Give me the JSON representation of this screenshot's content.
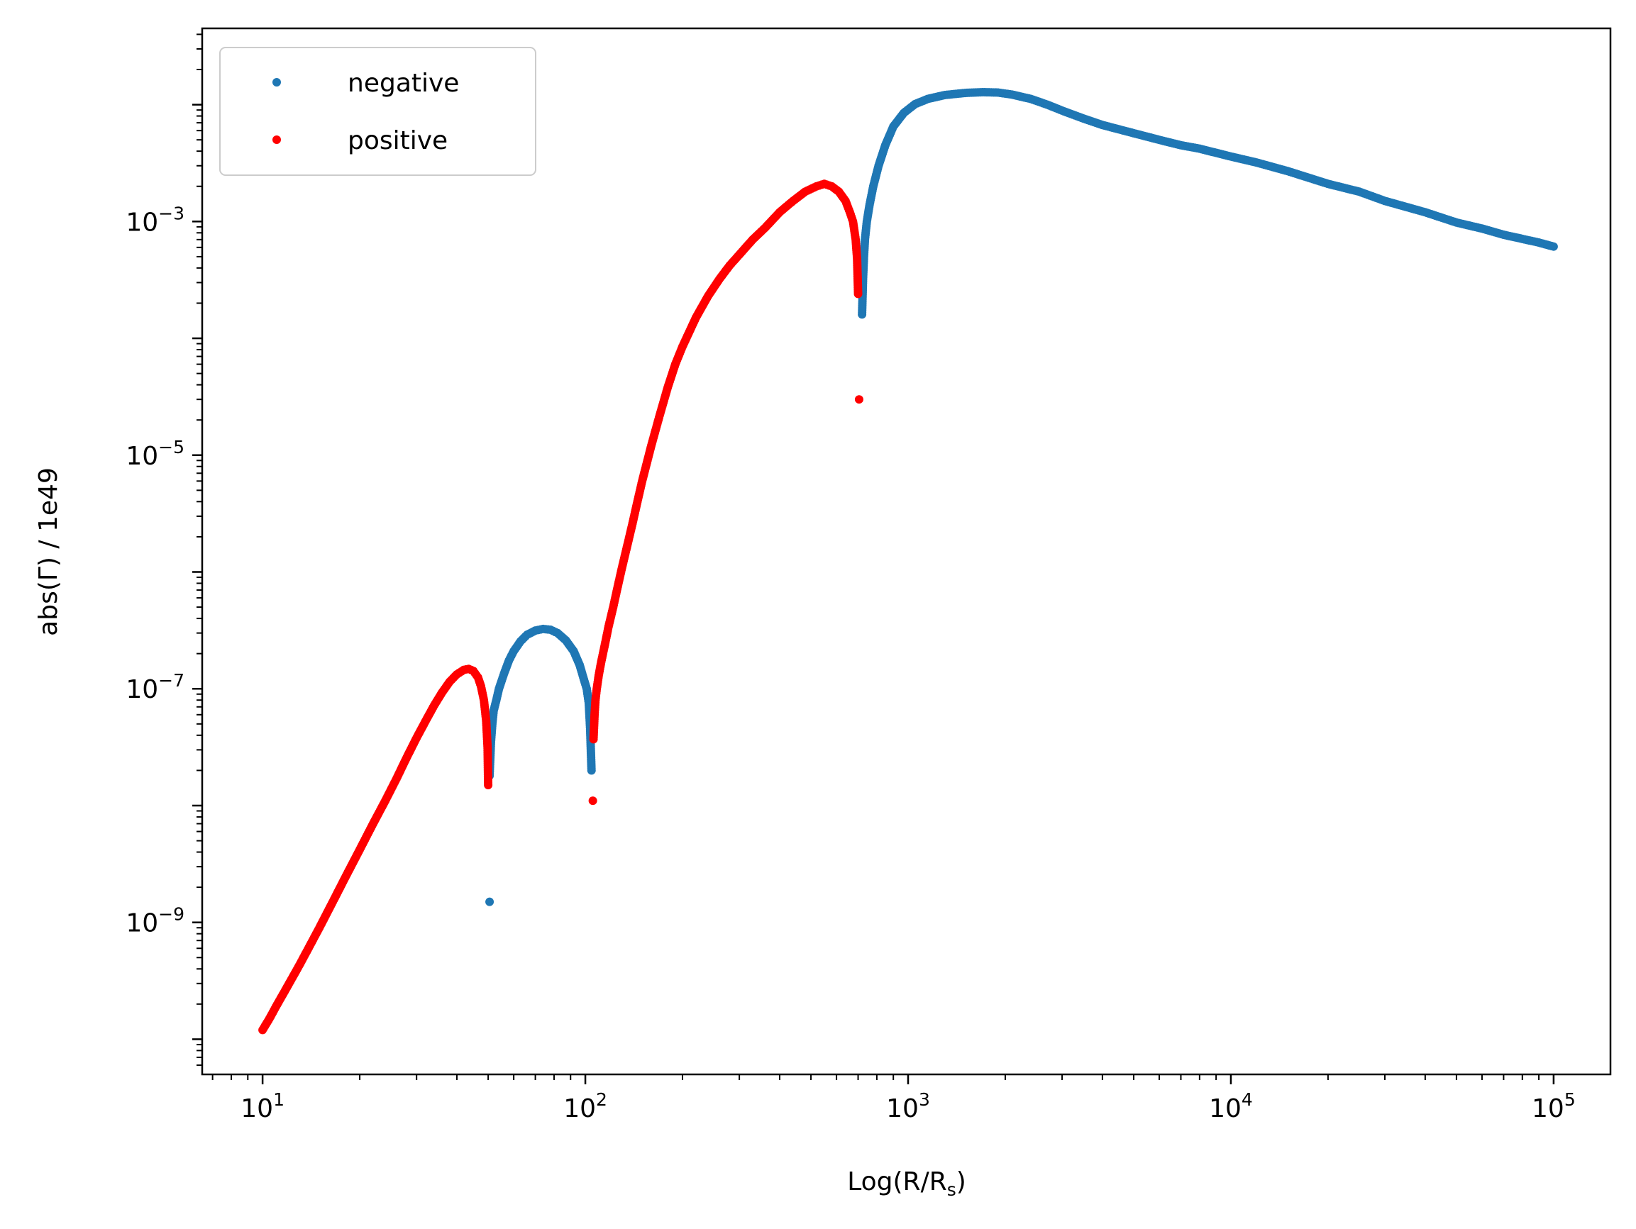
{
  "chart_data": {
    "type": "scatter",
    "title": "",
    "xlabel": "Log(R/R",
    "xlabel_sub": "s",
    "xlabel_close": ")",
    "ylabel": "abs(Γ) / 1e49",
    "x_scale": "log",
    "y_scale": "log",
    "xlim": [
      6.5,
      150000
    ],
    "ylim": [
      5e-11,
      0.045
    ],
    "grid": false,
    "legend_position": "top-left",
    "x_ticks": [
      {
        "value": 10,
        "base": "10",
        "exp": "1"
      },
      {
        "value": 100,
        "base": "10",
        "exp": "2"
      },
      {
        "value": 1000,
        "base": "10",
        "exp": "3"
      },
      {
        "value": 10000,
        "base": "10",
        "exp": "4"
      },
      {
        "value": 100000,
        "base": "10",
        "exp": "5"
      }
    ],
    "y_ticks": [
      {
        "value": 1e-09,
        "base": "10",
        "exp": "−9"
      },
      {
        "value": 1e-07,
        "base": "10",
        "exp": "−7"
      },
      {
        "value": 1e-05,
        "base": "10",
        "exp": "−5"
      },
      {
        "value": 0.001,
        "base": "10",
        "exp": "−3"
      }
    ],
    "series": [
      {
        "name": "negative",
        "color": "#1f77b4",
        "points": [
          [
            50.5,
            1.5e-09
          ],
          [
            50.5,
            1.8e-08
          ],
          [
            51,
            3.5e-08
          ],
          [
            51.5,
            5e-08
          ],
          [
            52,
            6.5e-08
          ],
          [
            53,
            8e-08
          ],
          [
            54,
            1e-07
          ],
          [
            56,
            1.35e-07
          ],
          [
            58,
            1.75e-07
          ],
          [
            60,
            2.1e-07
          ],
          [
            63,
            2.55e-07
          ],
          [
            66,
            2.9e-07
          ],
          [
            70,
            3.15e-07
          ],
          [
            74,
            3.25e-07
          ],
          [
            78,
            3.2e-07
          ],
          [
            82,
            3e-07
          ],
          [
            87,
            2.6e-07
          ],
          [
            92,
            2.1e-07
          ],
          [
            96,
            1.6e-07
          ],
          [
            99,
            1.2e-07
          ],
          [
            101,
            1e-07
          ],
          [
            102.5,
            7.5e-08
          ],
          [
            103.5,
            4.5e-08
          ],
          [
            104.5,
            2e-08
          ],
          [
            720,
            0.00016
          ],
          [
            725,
            0.00032
          ],
          [
            730,
            0.0005
          ],
          [
            735,
            0.0007
          ],
          [
            745,
            0.001
          ],
          [
            760,
            0.0014
          ],
          [
            780,
            0.002
          ],
          [
            810,
            0.003
          ],
          [
            850,
            0.0045
          ],
          [
            900,
            0.0065
          ],
          [
            970,
            0.0085
          ],
          [
            1050,
            0.0101
          ],
          [
            1150,
            0.0112
          ],
          [
            1300,
            0.0121
          ],
          [
            1500,
            0.0126
          ],
          [
            1700,
            0.0128
          ],
          [
            1900,
            0.0127
          ],
          [
            2100,
            0.0122
          ],
          [
            2400,
            0.0112
          ],
          [
            2700,
            0.01
          ],
          [
            3000,
            0.0089
          ],
          [
            3500,
            0.0076
          ],
          [
            4000,
            0.0067
          ],
          [
            5000,
            0.0057
          ],
          [
            6000,
            0.005
          ],
          [
            7000,
            0.0045
          ],
          [
            8000,
            0.0042
          ],
          [
            10000,
            0.0036
          ],
          [
            12000,
            0.0032
          ],
          [
            15000,
            0.0027
          ],
          [
            20000,
            0.0021
          ],
          [
            25000,
            0.0018
          ],
          [
            30000,
            0.0015
          ],
          [
            40000,
            0.0012
          ],
          [
            50000,
            0.00098
          ],
          [
            60000,
            0.00087
          ],
          [
            70000,
            0.00077
          ],
          [
            80000,
            0.00071
          ],
          [
            90000,
            0.00066
          ],
          [
            100000,
            0.00061
          ]
        ]
      },
      {
        "name": "positive",
        "color": "#ff0000",
        "points": [
          [
            10,
            1.2e-10
          ],
          [
            10.5,
            1.5e-10
          ],
          [
            11,
            1.9e-10
          ],
          [
            12,
            2.9e-10
          ],
          [
            13,
            4.3e-10
          ],
          [
            14,
            6.3e-10
          ],
          [
            15,
            9e-10
          ],
          [
            16.5,
            1.5e-09
          ],
          [
            18,
            2.4e-09
          ],
          [
            20,
            4.2e-09
          ],
          [
            22,
            7e-09
          ],
          [
            24,
            1.1e-08
          ],
          [
            26,
            1.7e-08
          ],
          [
            28,
            2.6e-08
          ],
          [
            30,
            3.8e-08
          ],
          [
            32,
            5.3e-08
          ],
          [
            34,
            7.2e-08
          ],
          [
            36,
            9.3e-08
          ],
          [
            38,
            1.15e-07
          ],
          [
            40,
            1.33e-07
          ],
          [
            42,
            1.45e-07
          ],
          [
            43.5,
            1.48e-07
          ],
          [
            45,
            1.42e-07
          ],
          [
            46.5,
            1.25e-07
          ],
          [
            47.5,
            1.05e-07
          ],
          [
            48.5,
            8e-08
          ],
          [
            49.3,
            5.3e-08
          ],
          [
            49.8,
            3.1e-08
          ],
          [
            50,
            1.5e-08
          ],
          [
            105.5,
            1.1e-08
          ],
          [
            106,
            3.7e-08
          ],
          [
            106.8,
            6e-08
          ],
          [
            107.5,
            8e-08
          ],
          [
            108.5,
            1e-07
          ],
          [
            110,
            1.3e-07
          ],
          [
            112,
            1.7e-07
          ],
          [
            115,
            2.4e-07
          ],
          [
            118,
            3.4e-07
          ],
          [
            122,
            5e-07
          ],
          [
            126,
            7.5e-07
          ],
          [
            130,
            1.1e-06
          ],
          [
            135,
            1.7e-06
          ],
          [
            140,
            2.6e-06
          ],
          [
            145,
            4e-06
          ],
          [
            150,
            6e-06
          ],
          [
            160,
            1.2e-05
          ],
          [
            170,
            2.2e-05
          ],
          [
            180,
            3.8e-05
          ],
          [
            190,
            6e-05
          ],
          [
            200,
            8.5e-05
          ],
          [
            220,
            0.00015
          ],
          [
            240,
            0.00023
          ],
          [
            260,
            0.00032
          ],
          [
            280,
            0.00042
          ],
          [
            300,
            0.00052
          ],
          [
            330,
            0.0007
          ],
          [
            360,
            0.00088
          ],
          [
            400,
            0.0012
          ],
          [
            440,
            0.0015
          ],
          [
            480,
            0.0018
          ],
          [
            520,
            0.002
          ],
          [
            550,
            0.0021
          ],
          [
            580,
            0.002
          ],
          [
            610,
            0.0018
          ],
          [
            640,
            0.0015
          ],
          [
            660,
            0.0012
          ],
          [
            675,
            0.001
          ],
          [
            688,
            0.0007
          ],
          [
            695,
            0.00048
          ],
          [
            700,
            0.00024
          ],
          [
            705,
            3e-05
          ]
        ]
      }
    ]
  }
}
